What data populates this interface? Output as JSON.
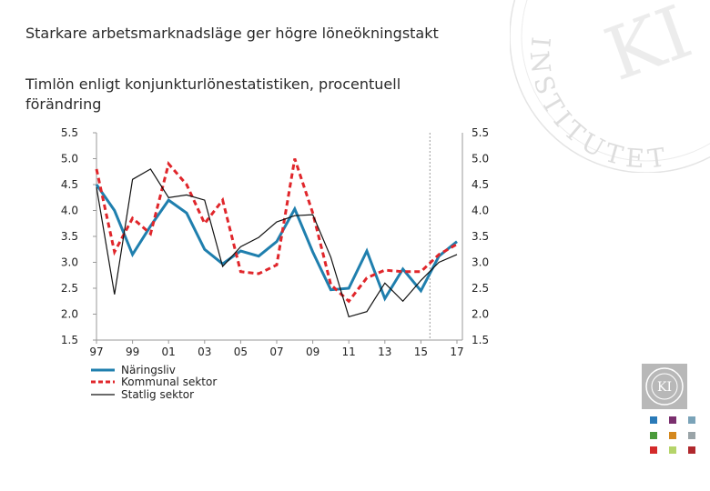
{
  "title": "Starkare arbetsmarknadsläge ger högre löneökningstakt",
  "subtitle": "Timlön enligt konjunkturlönestatistiken, procentuell förändring",
  "colors": {
    "naringsliv": "#1f7fae",
    "kommunal": "#e0262b",
    "statlig": "#111111",
    "forecast_line": "#999999",
    "sq_blue": "#2a7ab8",
    "sq_purple": "#7a2f6e",
    "sq_teal": "#7aa3b8",
    "sq_green": "#4a9a3a",
    "sq_orange": "#d4881e",
    "sq_grey": "#9aa4a8",
    "sq_red": "#d42a2a",
    "sq_lime": "#b5d46a",
    "sq_darkred": "#b0282d"
  },
  "logo": {
    "text": "KI",
    "seal_text": "KONJUNKTUR INSTITUTET"
  },
  "watermark_text": "INSTITUTET",
  "chart_data": {
    "type": "line",
    "x": [
      1997,
      1998,
      1999,
      2000,
      2001,
      2002,
      2003,
      2004,
      2005,
      2006,
      2007,
      2008,
      2009,
      2010,
      2011,
      2012,
      2013,
      2014,
      2015,
      2016,
      2017
    ],
    "x_tick_labels": [
      "97",
      "99",
      "01",
      "03",
      "05",
      "07",
      "09",
      "11",
      "13",
      "15",
      "17"
    ],
    "y_tick_labels": [
      "5.5",
      "5.0",
      "4.5",
      "4.0",
      "3.5",
      "3.0",
      "2.5",
      "2.0",
      "1.5"
    ],
    "y_ticks": [
      5.5,
      5.0,
      4.5,
      4.0,
      3.5,
      3.0,
      2.5,
      2.0,
      1.5
    ],
    "ylim": [
      1.5,
      5.5
    ],
    "forecast_from": 2015.5,
    "series": [
      {
        "name": "Näringsliv",
        "key": "naringsliv",
        "values": [
          4.5,
          4.0,
          3.15,
          3.7,
          4.2,
          3.95,
          3.25,
          2.97,
          3.22,
          3.12,
          3.4,
          4.03,
          3.2,
          2.47,
          2.5,
          3.22,
          2.3,
          2.87,
          2.45,
          3.12,
          3.4
        ]
      },
      {
        "name": "Kommunal sektor",
        "key": "kommunal",
        "values": [
          4.8,
          3.2,
          3.85,
          3.55,
          4.9,
          4.5,
          3.75,
          4.2,
          2.82,
          2.78,
          2.95,
          5.0,
          3.95,
          2.57,
          2.25,
          2.7,
          2.85,
          2.82,
          2.82,
          3.15,
          3.35
        ]
      },
      {
        "name": "Statlig sektor",
        "key": "statlig",
        "values": [
          4.45,
          2.38,
          4.6,
          4.8,
          4.25,
          4.3,
          4.2,
          2.92,
          3.3,
          3.48,
          3.78,
          3.9,
          3.92,
          3.1,
          1.95,
          2.05,
          2.6,
          2.25,
          2.65,
          3.0,
          3.15
        ]
      }
    ]
  }
}
